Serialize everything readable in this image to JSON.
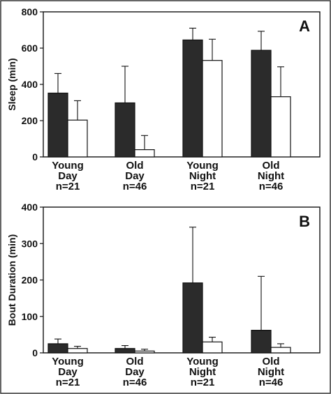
{
  "chart_data": [
    {
      "panel": "A",
      "type": "bar",
      "ylabel": "Sleep (min)",
      "ylim": [
        0,
        800
      ],
      "yticks": [
        "0",
        "200",
        "400",
        "600",
        "800"
      ],
      "categories": [
        [
          "Young",
          "Day",
          "n=21"
        ],
        [
          "Old",
          "Day",
          "n=46"
        ],
        [
          "Young",
          "Night",
          "n=21"
        ],
        [
          "Old",
          "Night",
          "n=46"
        ]
      ],
      "series": [
        {
          "fill": "#2b2b2b",
          "values": [
            352,
            298,
            645,
            588
          ],
          "errors": [
            108,
            202,
            65,
            105
          ]
        },
        {
          "fill": "#ffffff",
          "values": [
            203,
            40,
            532,
            332
          ],
          "errors": [
            107,
            78,
            117,
            165
          ]
        }
      ],
      "grid": false
    },
    {
      "panel": "B",
      "type": "bar",
      "ylabel": "Bout Duration (min)",
      "ylim": [
        0,
        400
      ],
      "yticks": [
        "0",
        "100",
        "200",
        "300",
        "400"
      ],
      "categories": [
        [
          "Young",
          "Day",
          "n=21"
        ],
        [
          "Old",
          "Day",
          "n=46"
        ],
        [
          "Young",
          "Night",
          "n=21"
        ],
        [
          "Old",
          "Night",
          "n=46"
        ]
      ],
      "series": [
        {
          "fill": "#2b2b2b",
          "values": [
            25,
            12,
            192,
            62
          ],
          "errors": [
            13,
            8,
            153,
            148
          ]
        },
        {
          "fill": "#ffffff",
          "values": [
            12,
            5,
            30,
            15
          ],
          "errors": [
            6,
            5,
            13,
            10
          ]
        }
      ],
      "grid": false
    }
  ]
}
